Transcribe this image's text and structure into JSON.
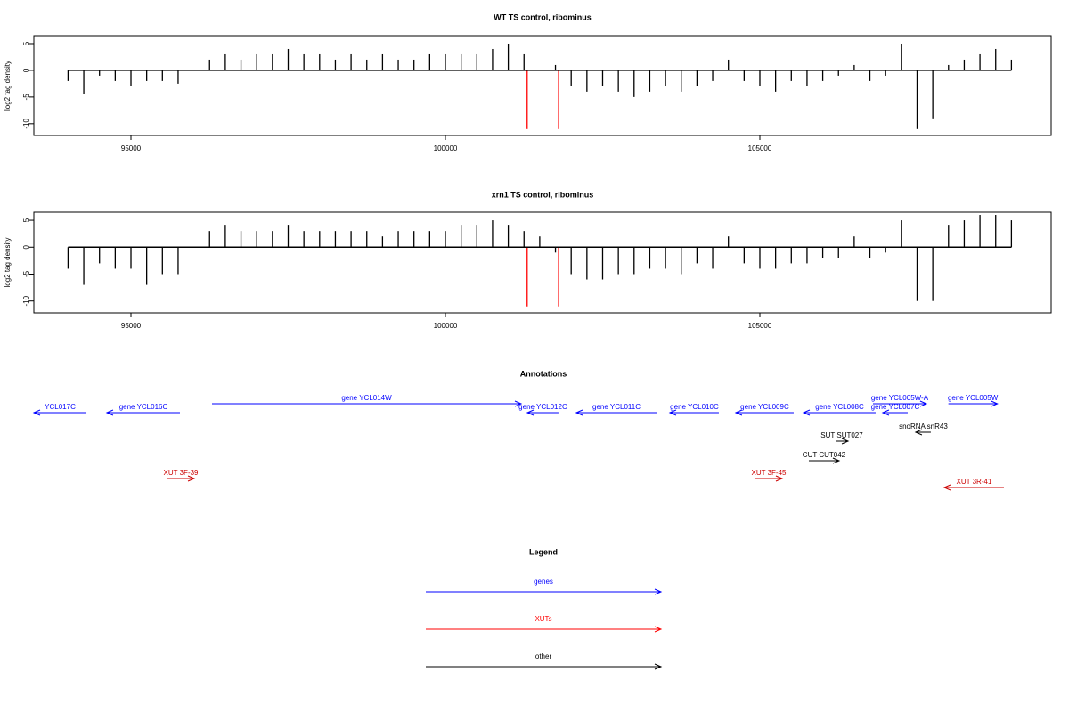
{
  "chart_data": [
    {
      "type": "bar",
      "title": "WT TS control, ribominus",
      "y_label": "log2 tag density",
      "xlim": [
        93456,
        109632
      ],
      "ylim": [
        -12.2,
        6.5
      ],
      "xticks": [
        95000,
        100000,
        105000
      ],
      "yticks": [
        -10,
        -5,
        0,
        5
      ],
      "x": [
        94000,
        94250,
        94500,
        94750,
        95000,
        95250,
        95500,
        95750,
        96000,
        96250,
        96500,
        96750,
        97000,
        97250,
        97500,
        97750,
        98000,
        98250,
        98500,
        98750,
        99000,
        99250,
        99500,
        99750,
        100000,
        100250,
        100500,
        100750,
        101000,
        101250,
        101500,
        101750,
        102000,
        102250,
        102500,
        102750,
        103000,
        103250,
        103500,
        103750,
        104000,
        104250,
        104500,
        104750,
        105000,
        105250,
        105500,
        105750,
        106000,
        106250,
        106500,
        106750,
        107000,
        107250,
        107500,
        107750,
        108000,
        108250,
        108500,
        108750,
        109000
      ],
      "series": [
        {
          "color": "#000000",
          "values": [
            -2,
            -4.5,
            -1,
            -2,
            -3,
            -2,
            -2,
            -2.5,
            0,
            2,
            3,
            2,
            3,
            3,
            4,
            3,
            3,
            2,
            3,
            2,
            3,
            2,
            2,
            3,
            3,
            3,
            3,
            4,
            5,
            3,
            0,
            1,
            -3,
            -4,
            -3,
            -4,
            -5,
            -4,
            -3,
            -4,
            -3,
            -2,
            2,
            -2,
            -3,
            -4,
            -2,
            -3,
            -2,
            -1,
            1,
            -2,
            -1,
            5,
            -11,
            -9,
            1,
            2,
            3,
            4,
            2
          ]
        },
        {
          "color": "#ff0000",
          "x": [
            101300,
            101800
          ],
          "values": [
            -11,
            -11
          ]
        }
      ]
    },
    {
      "type": "bar",
      "title": "xrn1 TS control, ribominus",
      "y_label": "log2 tag density",
      "xlim": [
        93456,
        109632
      ],
      "ylim": [
        -12.2,
        6.5
      ],
      "xticks": [
        95000,
        100000,
        105000
      ],
      "yticks": [
        -10,
        -5,
        0,
        5
      ],
      "x": [
        94000,
        94250,
        94500,
        94750,
        95000,
        95250,
        95500,
        95750,
        96000,
        96250,
        96500,
        96750,
        97000,
        97250,
        97500,
        97750,
        98000,
        98250,
        98500,
        98750,
        99000,
        99250,
        99500,
        99750,
        100000,
        100250,
        100500,
        100750,
        101000,
        101250,
        101500,
        101750,
        102000,
        102250,
        102500,
        102750,
        103000,
        103250,
        103500,
        103750,
        104000,
        104250,
        104500,
        104750,
        105000,
        105250,
        105500,
        105750,
        106000,
        106250,
        106500,
        106750,
        107000,
        107250,
        107500,
        107750,
        108000,
        108250,
        108500,
        108750,
        109000
      ],
      "series": [
        {
          "color": "#000000",
          "values": [
            -4,
            -7,
            -3,
            -4,
            -4,
            -7,
            -5,
            -5,
            0,
            3,
            4,
            3,
            3,
            3,
            4,
            3,
            3,
            3,
            3,
            3,
            2,
            3,
            3,
            3,
            3,
            4,
            4,
            5,
            4,
            3,
            2,
            -1,
            -5,
            -6,
            -6,
            -5,
            -5,
            -4,
            -4,
            -5,
            -3,
            -4,
            2,
            -3,
            -4,
            -4,
            -3,
            -3,
            -2,
            -2,
            2,
            -2,
            -1,
            5,
            -10,
            -10,
            4,
            5,
            6,
            6,
            5
          ]
        },
        {
          "color": "#ff0000",
          "x": [
            101300,
            101800
          ],
          "values": [
            -11,
            -11
          ]
        }
      ]
    }
  ],
  "annotations": {
    "title": "Annotations",
    "features": [
      {
        "label": "YCL017C",
        "start": 93456,
        "end": 94292,
        "strand": "-",
        "color": "#0000ff"
      },
      {
        "label": "gene YCL016C",
        "start": 94617,
        "end": 95779,
        "strand": "-",
        "color": "#0000ff"
      },
      {
        "label": "gene YCL014W",
        "start": 96289,
        "end": 101204,
        "strand": "+",
        "color": "#0000ff"
      },
      {
        "label": "gene YCL012C",
        "start": 101303,
        "end": 101798,
        "strand": "-",
        "color": "#0000ff"
      },
      {
        "label": "gene YCL011C",
        "start": 102082,
        "end": 103357,
        "strand": "-",
        "color": "#0000ff"
      },
      {
        "label": "gene YCL010C",
        "start": 103569,
        "end": 104348,
        "strand": "-",
        "color": "#0000ff"
      },
      {
        "label": "gene YCL009C",
        "start": 104617,
        "end": 105538,
        "strand": "-",
        "color": "#0000ff"
      },
      {
        "label": "gene YCL008C",
        "start": 105694,
        "end": 106841,
        "strand": "-",
        "color": "#0000ff"
      },
      {
        "label": "gene YCL007C",
        "start": 106954,
        "end": 107351,
        "strand": "-",
        "color": "#0000ff"
      },
      {
        "label": "gene YCL005W-A",
        "start": 106799,
        "end": 107648,
        "strand": "+",
        "color": "#0000ff"
      },
      {
        "label": "gene YCL005W",
        "start": 107998,
        "end": 108777,
        "strand": "+",
        "color": "#0000ff"
      },
      {
        "label": "snoRNA snR43",
        "start": 107478,
        "end": 107719,
        "strand": "-",
        "color": "#000000"
      },
      {
        "label": "SUT SUT027",
        "start": 106204,
        "end": 106403,
        "strand": "+",
        "color": "#000000"
      },
      {
        "label": "CUT CUT042",
        "start": 105779,
        "end": 106260,
        "strand": "+",
        "color": "#000000"
      },
      {
        "label": "XUT 3F-39",
        "start": 95581,
        "end": 96006,
        "strand": "+",
        "color": "#cc0000"
      },
      {
        "label": "XUT 3F-45",
        "start": 104929,
        "end": 105354,
        "strand": "+",
        "color": "#cc0000"
      },
      {
        "label": "XUT 3R-41",
        "start": 107932,
        "end": 108881,
        "strand": "-",
        "color": "#cc0000"
      }
    ]
  },
  "legend": {
    "title": "Legend",
    "entries": [
      {
        "label": "genes",
        "color": "#0000ff"
      },
      {
        "label": "XUTs",
        "color": "#ff0000"
      },
      {
        "label": "other",
        "color": "#000000"
      }
    ]
  }
}
